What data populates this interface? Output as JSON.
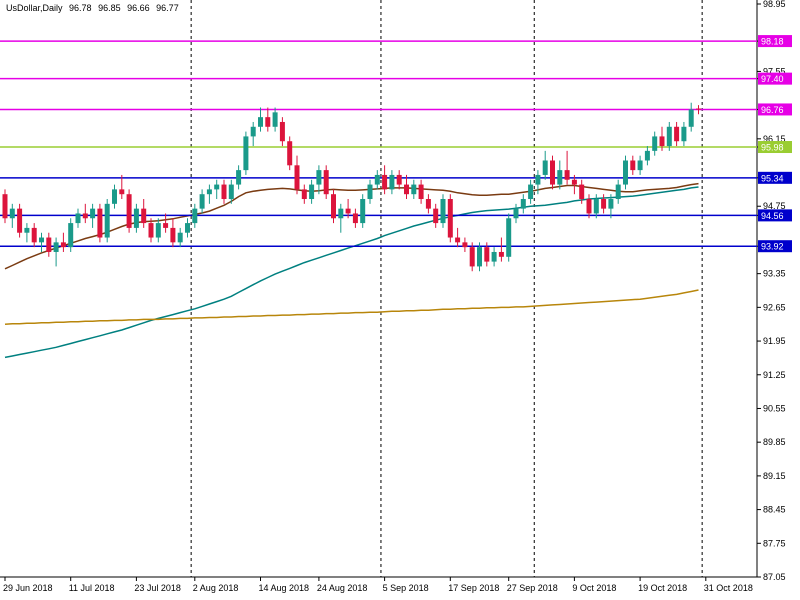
{
  "chart_data": {
    "type": "candlestick",
    "symbol": "UsDollar,Daily",
    "ohlc_header": {
      "open": "96.78",
      "high": "96.85",
      "low": "96.66",
      "close": "96.77"
    },
    "ylim": [
      87.05,
      98.95
    ],
    "y_ticks": [
      "98.95",
      "98.18",
      "97.55",
      "97.40",
      "96.76",
      "96.15",
      "95.98",
      "95.34",
      "94.75",
      "94.56",
      "93.92",
      "93.35",
      "92.65",
      "91.95",
      "91.25",
      "90.55",
      "89.85",
      "89.15",
      "88.45",
      "87.75",
      "87.05"
    ],
    "x_ticks": [
      "29 Jun 2018",
      "11 Jul 2018",
      "23 Jul 2018",
      "2 Aug 2018",
      "14 Aug 2018",
      "24 Aug 2018",
      "5 Sep 2018",
      "17 Sep 2018",
      "27 Sep 2018",
      "9 Oct 2018",
      "19 Oct 2018",
      "31 Oct 2018"
    ],
    "x_tick_index": [
      0,
      9,
      18,
      26,
      35,
      43,
      52,
      61,
      69,
      78,
      87,
      96
    ],
    "day_separators_index": [
      26,
      52,
      73,
      96
    ],
    "grid": false,
    "horizontal_levels": [
      {
        "value": 98.18,
        "label": "98.18",
        "color": "#e600e6"
      },
      {
        "value": 97.4,
        "label": "97.40",
        "color": "#e600e6"
      },
      {
        "value": 96.76,
        "label": "96.76",
        "color": "#e600e6"
      },
      {
        "value": 95.98,
        "label": "95.98",
        "color": "#9acd32"
      },
      {
        "value": 95.34,
        "label": "95.34",
        "color": "#0000cc"
      },
      {
        "value": 94.56,
        "label": "94.56",
        "color": "#0000cc"
      },
      {
        "value": 93.92,
        "label": "93.92",
        "color": "#0000cc"
      }
    ],
    "candles": [
      {
        "o": 95.0,
        "h": 95.1,
        "l": 94.4,
        "c": 94.5
      },
      {
        "o": 94.5,
        "h": 94.8,
        "l": 94.3,
        "c": 94.7
      },
      {
        "o": 94.7,
        "h": 94.8,
        "l": 94.1,
        "c": 94.2
      },
      {
        "o": 94.2,
        "h": 94.4,
        "l": 94.0,
        "c": 94.3
      },
      {
        "o": 94.3,
        "h": 94.4,
        "l": 93.9,
        "c": 94.0
      },
      {
        "o": 94.0,
        "h": 94.2,
        "l": 93.8,
        "c": 94.1
      },
      {
        "o": 94.1,
        "h": 94.2,
        "l": 93.7,
        "c": 93.8
      },
      {
        "o": 93.8,
        "h": 94.1,
        "l": 93.5,
        "c": 94.0
      },
      {
        "o": 94.0,
        "h": 94.2,
        "l": 93.8,
        "c": 93.9
      },
      {
        "o": 93.9,
        "h": 94.5,
        "l": 93.8,
        "c": 94.4
      },
      {
        "o": 94.4,
        "h": 94.7,
        "l": 94.3,
        "c": 94.6
      },
      {
        "o": 94.6,
        "h": 94.8,
        "l": 94.4,
        "c": 94.5
      },
      {
        "o": 94.5,
        "h": 94.8,
        "l": 94.3,
        "c": 94.7
      },
      {
        "o": 94.7,
        "h": 94.8,
        "l": 94.0,
        "c": 94.1
      },
      {
        "o": 94.1,
        "h": 94.9,
        "l": 94.0,
        "c": 94.8
      },
      {
        "o": 94.8,
        "h": 95.2,
        "l": 94.7,
        "c": 95.1
      },
      {
        "o": 95.1,
        "h": 95.4,
        "l": 94.9,
        "c": 95.0
      },
      {
        "o": 95.0,
        "h": 95.1,
        "l": 94.2,
        "c": 94.3
      },
      {
        "o": 94.3,
        "h": 94.8,
        "l": 94.2,
        "c": 94.7
      },
      {
        "o": 94.7,
        "h": 94.9,
        "l": 94.3,
        "c": 94.4
      },
      {
        "o": 94.4,
        "h": 94.5,
        "l": 94.0,
        "c": 94.1
      },
      {
        "o": 94.1,
        "h": 94.5,
        "l": 94.0,
        "c": 94.4
      },
      {
        "o": 94.4,
        "h": 94.6,
        "l": 94.2,
        "c": 94.3
      },
      {
        "o": 94.3,
        "h": 94.5,
        "l": 93.9,
        "c": 94.0
      },
      {
        "o": 94.0,
        "h": 94.3,
        "l": 93.9,
        "c": 94.2
      },
      {
        "o": 94.2,
        "h": 94.5,
        "l": 94.1,
        "c": 94.4
      },
      {
        "o": 94.4,
        "h": 94.8,
        "l": 94.3,
        "c": 94.7
      },
      {
        "o": 94.7,
        "h": 95.1,
        "l": 94.6,
        "c": 95.0
      },
      {
        "o": 95.0,
        "h": 95.2,
        "l": 94.8,
        "c": 95.1
      },
      {
        "o": 95.1,
        "h": 95.3,
        "l": 94.9,
        "c": 95.2
      },
      {
        "o": 95.2,
        "h": 95.3,
        "l": 94.8,
        "c": 94.9
      },
      {
        "o": 94.9,
        "h": 95.3,
        "l": 94.8,
        "c": 95.2
      },
      {
        "o": 95.2,
        "h": 95.6,
        "l": 95.1,
        "c": 95.5
      },
      {
        "o": 95.5,
        "h": 96.3,
        "l": 95.4,
        "c": 96.2
      },
      {
        "o": 96.2,
        "h": 96.5,
        "l": 96.0,
        "c": 96.4
      },
      {
        "o": 96.4,
        "h": 96.8,
        "l": 96.3,
        "c": 96.6
      },
      {
        "o": 96.6,
        "h": 96.8,
        "l": 96.3,
        "c": 96.4
      },
      {
        "o": 96.4,
        "h": 96.8,
        "l": 96.3,
        "c": 96.7
      },
      {
        "o": 96.5,
        "h": 96.6,
        "l": 96.0,
        "c": 96.1
      },
      {
        "o": 96.1,
        "h": 96.2,
        "l": 95.5,
        "c": 95.6
      },
      {
        "o": 95.6,
        "h": 95.8,
        "l": 95.0,
        "c": 95.1
      },
      {
        "o": 95.1,
        "h": 95.2,
        "l": 94.8,
        "c": 94.9
      },
      {
        "o": 94.9,
        "h": 95.3,
        "l": 94.8,
        "c": 95.2
      },
      {
        "o": 95.2,
        "h": 95.6,
        "l": 95.0,
        "c": 95.5
      },
      {
        "o": 95.5,
        "h": 95.6,
        "l": 94.9,
        "c": 95.0
      },
      {
        "o": 95.0,
        "h": 95.1,
        "l": 94.4,
        "c": 94.5
      },
      {
        "o": 94.5,
        "h": 94.8,
        "l": 94.2,
        "c": 94.7
      },
      {
        "o": 94.7,
        "h": 94.9,
        "l": 94.5,
        "c": 94.6
      },
      {
        "o": 94.6,
        "h": 94.7,
        "l": 94.3,
        "c": 94.4
      },
      {
        "o": 94.4,
        "h": 95.0,
        "l": 94.3,
        "c": 94.9
      },
      {
        "o": 94.9,
        "h": 95.3,
        "l": 94.8,
        "c": 95.2
      },
      {
        "o": 95.2,
        "h": 95.5,
        "l": 95.1,
        "c": 95.4
      },
      {
        "o": 95.4,
        "h": 95.6,
        "l": 95.0,
        "c": 95.1
      },
      {
        "o": 95.1,
        "h": 95.5,
        "l": 95.0,
        "c": 95.4
      },
      {
        "o": 95.4,
        "h": 95.5,
        "l": 95.1,
        "c": 95.2
      },
      {
        "o": 95.2,
        "h": 95.4,
        "l": 94.9,
        "c": 95.0
      },
      {
        "o": 95.0,
        "h": 95.3,
        "l": 94.9,
        "c": 95.2
      },
      {
        "o": 95.2,
        "h": 95.3,
        "l": 94.8,
        "c": 94.9
      },
      {
        "o": 94.9,
        "h": 95.0,
        "l": 94.6,
        "c": 94.7
      },
      {
        "o": 94.7,
        "h": 94.8,
        "l": 94.3,
        "c": 94.4
      },
      {
        "o": 94.4,
        "h": 95.0,
        "l": 94.3,
        "c": 94.9
      },
      {
        "o": 94.9,
        "h": 95.0,
        "l": 94.0,
        "c": 94.1
      },
      {
        "o": 94.1,
        "h": 94.3,
        "l": 93.9,
        "c": 94.0
      },
      {
        "o": 94.0,
        "h": 94.1,
        "l": 93.8,
        "c": 93.9
      },
      {
        "o": 93.9,
        "h": 94.0,
        "l": 93.4,
        "c": 93.5
      },
      {
        "o": 93.5,
        "h": 94.0,
        "l": 93.4,
        "c": 93.9
      },
      {
        "o": 93.9,
        "h": 94.0,
        "l": 93.5,
        "c": 93.6
      },
      {
        "o": 93.6,
        "h": 93.9,
        "l": 93.5,
        "c": 93.8
      },
      {
        "o": 93.8,
        "h": 94.1,
        "l": 93.6,
        "c": 93.7
      },
      {
        "o": 93.7,
        "h": 94.6,
        "l": 93.6,
        "c": 94.5
      },
      {
        "o": 94.5,
        "h": 94.8,
        "l": 94.4,
        "c": 94.7
      },
      {
        "o": 94.7,
        "h": 95.0,
        "l": 94.6,
        "c": 94.9
      },
      {
        "o": 94.9,
        "h": 95.3,
        "l": 94.8,
        "c": 95.2
      },
      {
        "o": 95.2,
        "h": 95.5,
        "l": 95.0,
        "c": 95.4
      },
      {
        "o": 95.4,
        "h": 95.9,
        "l": 95.3,
        "c": 95.7
      },
      {
        "o": 95.7,
        "h": 95.8,
        "l": 95.1,
        "c": 95.2
      },
      {
        "o": 95.2,
        "h": 95.7,
        "l": 95.1,
        "c": 95.5
      },
      {
        "o": 95.5,
        "h": 95.9,
        "l": 95.2,
        "c": 95.3
      },
      {
        "o": 95.3,
        "h": 95.4,
        "l": 95.0,
        "c": 95.2
      },
      {
        "o": 95.2,
        "h": 95.3,
        "l": 94.8,
        "c": 94.9
      },
      {
        "o": 94.9,
        "h": 95.0,
        "l": 94.5,
        "c": 94.6
      },
      {
        "o": 94.6,
        "h": 95.0,
        "l": 94.5,
        "c": 94.9
      },
      {
        "o": 94.9,
        "h": 95.0,
        "l": 94.6,
        "c": 94.7
      },
      {
        "o": 94.7,
        "h": 95.0,
        "l": 94.5,
        "c": 94.9
      },
      {
        "o": 94.9,
        "h": 95.3,
        "l": 94.8,
        "c": 95.2
      },
      {
        "o": 95.2,
        "h": 95.8,
        "l": 95.1,
        "c": 95.7
      },
      {
        "o": 95.7,
        "h": 95.8,
        "l": 95.4,
        "c": 95.5
      },
      {
        "o": 95.5,
        "h": 95.8,
        "l": 95.4,
        "c": 95.7
      },
      {
        "o": 95.7,
        "h": 96.0,
        "l": 95.6,
        "c": 95.9
      },
      {
        "o": 95.9,
        "h": 96.3,
        "l": 95.8,
        "c": 96.2
      },
      {
        "o": 96.2,
        "h": 96.4,
        "l": 95.9,
        "c": 96.0
      },
      {
        "o": 96.0,
        "h": 96.5,
        "l": 95.9,
        "c": 96.4
      },
      {
        "o": 96.4,
        "h": 96.5,
        "l": 96.0,
        "c": 96.1
      },
      {
        "o": 96.1,
        "h": 96.5,
        "l": 96.0,
        "c": 96.4
      },
      {
        "o": 96.4,
        "h": 96.9,
        "l": 96.3,
        "c": 96.76
      },
      {
        "o": 96.78,
        "h": 96.85,
        "l": 96.66,
        "c": 96.77
      }
    ],
    "series": [
      {
        "color": "#7a3b12",
        "values": [
          93.45,
          93.52,
          93.59,
          93.66,
          93.72,
          93.78,
          93.83,
          93.88,
          93.93,
          93.98,
          94.03,
          94.08,
          94.12,
          94.16,
          94.21,
          94.27,
          94.33,
          94.38,
          94.41,
          94.43,
          94.44,
          94.45,
          94.47,
          94.49,
          94.52,
          94.55,
          94.58,
          94.61,
          94.65,
          94.71,
          94.77,
          94.85,
          94.95,
          95.03,
          95.06,
          95.08,
          95.1,
          95.11,
          95.12,
          95.11,
          95.09,
          95.07,
          95.06,
          95.07,
          95.09,
          95.1,
          95.09,
          95.08,
          95.08,
          95.09,
          95.1,
          95.11,
          95.12,
          95.13,
          95.13,
          95.13,
          95.12,
          95.11,
          95.1,
          95.09,
          95.08,
          95.06,
          95.03,
          95.01,
          94.99,
          94.98,
          94.98,
          94.99,
          95.0,
          95.0,
          95.02,
          95.04,
          95.06,
          95.09,
          95.12,
          95.14,
          95.16,
          95.18,
          95.18,
          95.16,
          95.14,
          95.12,
          95.1,
          95.08,
          95.06,
          95.05,
          95.05,
          95.07,
          95.09,
          95.1,
          95.11,
          95.12,
          95.14,
          95.17,
          95.2,
          95.22
        ]
      },
      {
        "color": "#008080",
        "values": [
          91.61,
          91.64,
          91.67,
          91.7,
          91.73,
          91.76,
          91.79,
          91.82,
          91.86,
          91.9,
          91.94,
          91.98,
          92.02,
          92.06,
          92.1,
          92.14,
          92.18,
          92.23,
          92.28,
          92.33,
          92.38,
          92.42,
          92.46,
          92.5,
          92.54,
          92.58,
          92.62,
          92.67,
          92.72,
          92.77,
          92.82,
          92.88,
          92.96,
          93.04,
          93.12,
          93.2,
          93.27,
          93.34,
          93.4,
          93.46,
          93.52,
          93.58,
          93.63,
          93.68,
          93.73,
          93.78,
          93.83,
          93.88,
          93.93,
          93.98,
          94.03,
          94.08,
          94.14,
          94.19,
          94.24,
          94.29,
          94.34,
          94.38,
          94.42,
          94.46,
          94.5,
          94.53,
          94.56,
          94.59,
          94.62,
          94.64,
          94.66,
          94.67,
          94.68,
          94.69,
          94.71,
          94.73,
          94.75,
          94.76,
          94.77,
          94.79,
          94.81,
          94.83,
          94.86,
          94.88,
          94.9,
          94.91,
          94.92,
          94.93,
          94.94,
          94.95,
          94.96,
          94.98,
          95.0,
          95.02,
          95.04,
          95.06,
          95.08,
          95.1,
          95.13,
          95.15
        ]
      },
      {
        "color": "#b8860b",
        "values": [
          92.3,
          92.31,
          92.31,
          92.32,
          92.32,
          92.33,
          92.33,
          92.34,
          92.34,
          92.35,
          92.35,
          92.36,
          92.36,
          92.37,
          92.37,
          92.38,
          92.38,
          92.39,
          92.39,
          92.4,
          92.4,
          92.4,
          92.41,
          92.41,
          92.42,
          92.42,
          92.43,
          92.43,
          92.44,
          92.44,
          92.45,
          92.45,
          92.46,
          92.46,
          92.47,
          92.47,
          92.48,
          92.48,
          92.49,
          92.49,
          92.5,
          92.5,
          92.51,
          92.51,
          92.52,
          92.52,
          92.53,
          92.53,
          92.54,
          92.54,
          92.55,
          92.55,
          92.56,
          92.57,
          92.57,
          92.58,
          92.58,
          92.59,
          92.59,
          92.6,
          92.61,
          92.61,
          92.62,
          92.62,
          92.63,
          92.63,
          92.64,
          92.64,
          92.65,
          92.65,
          92.66,
          92.66,
          92.67,
          92.68,
          92.69,
          92.7,
          92.71,
          92.72,
          92.73,
          92.74,
          92.75,
          92.76,
          92.77,
          92.78,
          92.79,
          92.8,
          92.81,
          92.82,
          92.84,
          92.86,
          92.88,
          92.9,
          92.92,
          92.95,
          92.98,
          93.01
        ]
      }
    ],
    "colors": {
      "bull": "#1a9a8a",
      "bear": "#dc143c",
      "axis": "#000000",
      "separator": "#000000"
    }
  }
}
